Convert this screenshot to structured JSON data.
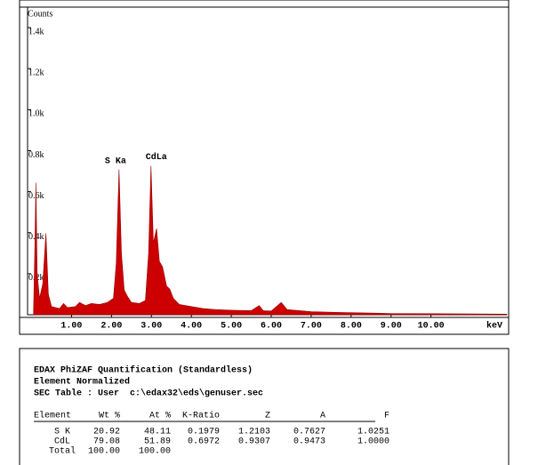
{
  "chart_data": {
    "type": "area",
    "y_label": "Counts",
    "x_label": "keV",
    "color": "#cc0000",
    "x": [
      0.05,
      0.08,
      0.11,
      0.14,
      0.2,
      0.28,
      0.36,
      0.42,
      0.5,
      0.7,
      0.8,
      0.9,
      1.1,
      1.2,
      1.35,
      1.5,
      1.7,
      1.9,
      2.05,
      2.12,
      2.19,
      2.25,
      2.32,
      2.4,
      2.5,
      2.7,
      2.85,
      2.93,
      2.99,
      3.05,
      3.13,
      3.2,
      3.28,
      3.38,
      3.46,
      3.55,
      3.7,
      4.0,
      4.3,
      4.6,
      5.0,
      5.5,
      5.7,
      5.8,
      6.0,
      6.25,
      6.4,
      7.0,
      7.5,
      8.0,
      8.6,
      9.0,
      10.0,
      11.0,
      11.9
    ],
    "values": [
      20,
      300,
      644,
      200,
      80,
      150,
      397,
      100,
      40,
      30,
      55,
      35,
      40,
      60,
      45,
      55,
      50,
      60,
      80,
      250,
      708,
      300,
      120,
      90,
      60,
      55,
      70,
      300,
      726,
      350,
      420,
      260,
      233,
      140,
      125,
      80,
      50,
      40,
      30,
      25,
      22,
      20,
      45,
      20,
      18,
      60,
      25,
      15,
      12,
      10,
      8,
      6,
      5,
      4,
      3
    ],
    "xlim": [
      -0.1,
      11.9
    ],
    "ylim": [
      0,
      1500
    ],
    "xticks": [
      {
        "value": 1,
        "label": "1.00"
      },
      {
        "value": 2,
        "label": "2.00"
      },
      {
        "value": 3,
        "label": "3.00"
      },
      {
        "value": 4,
        "label": "4.00"
      },
      {
        "value": 5,
        "label": "5.00"
      },
      {
        "value": 6,
        "label": "6.00"
      },
      {
        "value": 7,
        "label": "7.00"
      },
      {
        "value": 8,
        "label": "8.00"
      },
      {
        "value": 9,
        "label": "9.00"
      },
      {
        "value": 10,
        "label": "10.00"
      }
    ],
    "yticks": [
      {
        "value": 200,
        "label": "0.2k"
      },
      {
        "value": 400,
        "label": "0.4k"
      },
      {
        "value": 600,
        "label": "0.6k"
      },
      {
        "value": 800,
        "label": "0.8k"
      },
      {
        "value": 1000,
        "label": "1.0k"
      },
      {
        "value": 1200,
        "label": "1.2k"
      },
      {
        "value": 1400,
        "label": "1.4k"
      }
    ],
    "annotations": [
      {
        "text": "S Ka",
        "x": 2.19,
        "y": 708
      },
      {
        "text": "CdLa",
        "x": 2.99,
        "y": 726
      }
    ]
  },
  "report": {
    "lines": [
      "EDAX PhiZAF Quantification (Standardless)",
      "Element Normalized",
      "SEC Table : User  c:\\edax32\\eds\\genuser.sec"
    ],
    "table": {
      "header": [
        "Element",
        "Wt %",
        "At %",
        "K-Ratio",
        "Z",
        "A",
        "F"
      ],
      "rows": [
        [
          "S K",
          "20.92",
          "48.11",
          "0.1979",
          "1.2103",
          "0.7627",
          "1.0251"
        ],
        [
          "CdL",
          "79.08",
          "51.89",
          "0.6972",
          "0.9307",
          "0.9473",
          "1.0000"
        ],
        [
          "Total",
          "100.00",
          "100.00"
        ]
      ]
    }
  }
}
